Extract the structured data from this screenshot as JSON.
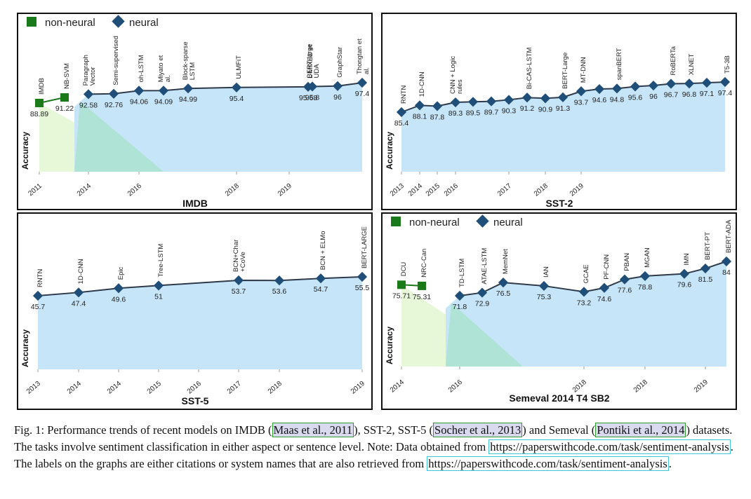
{
  "colors": {
    "neural": "#1f4e79",
    "nonneural": "#1a7a1a",
    "area_neural": "#c6e5f8",
    "area_nonneural": "#e6f8d8",
    "area_overlap": "#aee3d6",
    "line": "#2e3a4a"
  },
  "legend": {
    "nonneural_label": "non-neural",
    "neural_label": "neural"
  },
  "chart_data": [
    {
      "id": "imdb",
      "type": "line",
      "title": "IMDB",
      "ylabel": "Accuracy",
      "legend": "top-left",
      "years": [
        "2011",
        "2014",
        "2016",
        "2018",
        "2019"
      ],
      "nonneural": [
        {
          "name": "IMDB",
          "value": 88.89
        },
        {
          "name": "NB-SVM",
          "value": 91.22
        }
      ],
      "neural": [
        {
          "name": "Paragraph Vector",
          "value": 92.58
        },
        {
          "name": "Semi-supervised",
          "value": 92.76
        },
        {
          "name": "oh-LSTM",
          "value": 94.06
        },
        {
          "name": "Miyato et al.",
          "value": 94.09
        },
        {
          "name": "Block-sparse LSTM",
          "value": 94.99
        },
        {
          "name": "ULMFiT",
          "value": 95.4
        },
        {
          "name": "L MIXED et",
          "value": 95.68
        },
        {
          "name": "BERT-large UDA",
          "value": 95.8
        },
        {
          "name": "GraphStar",
          "value": 96
        },
        {
          "name": "Thongtan et al.",
          "value": 97.4
        }
      ]
    },
    {
      "id": "sst2",
      "type": "line",
      "title": "SST-2",
      "ylabel": "Accuracy",
      "years": [
        "2013",
        "2014",
        "2015",
        "2016",
        "2017",
        "2018",
        "2019"
      ],
      "nonneural": [],
      "neural": [
        {
          "name": "RNTN",
          "value": 85.4
        },
        {
          "name": "1D-CNN",
          "value": 88.1
        },
        {
          "name": "",
          "value": 87.8
        },
        {
          "name": "CNN + Logic rules",
          "value": 89.3
        },
        {
          "name": "",
          "value": 89.5
        },
        {
          "name": "",
          "value": 89.7
        },
        {
          "name": "",
          "value": 90.3
        },
        {
          "name": "Bi-CAS-LSTM",
          "value": 91.2
        },
        {
          "name": "",
          "value": 90.9
        },
        {
          "name": "BERT-Large",
          "value": 91.3
        },
        {
          "name": "MT-DNN",
          "value": 93.7
        },
        {
          "name": "",
          "value": 94.6
        },
        {
          "name": "spanBERT",
          "value": 94.8
        },
        {
          "name": "",
          "value": 95.6
        },
        {
          "name": "",
          "value": 96
        },
        {
          "name": "RoBERTa",
          "value": 96.7
        },
        {
          "name": "XLNET",
          "value": 96.8
        },
        {
          "name": "",
          "value": 97.1
        },
        {
          "name": "T5-3B",
          "value": 97.4
        }
      ]
    },
    {
      "id": "sst5",
      "type": "line",
      "title": "SST-5",
      "ylabel": "Accuracy",
      "years": [
        "2013",
        "2014",
        "2014",
        "2015",
        "2016",
        "2017",
        "2018",
        "2019"
      ],
      "nonneural": [],
      "neural": [
        {
          "name": "RNTN",
          "value": 45.7
        },
        {
          "name": "1D-CNN",
          "value": 47.4
        },
        {
          "name": "Epic",
          "value": 49.6
        },
        {
          "name": "Tree-LSTM",
          "value": 51
        },
        {
          "name": "BCN+Char +CoVe",
          "value": 53.7
        },
        {
          "name": "",
          "value": 53.6
        },
        {
          "name": "BCN + ELMo",
          "value": 54.7
        },
        {
          "name": "BERT-LARGE",
          "value": 55.5
        }
      ]
    },
    {
      "id": "semeval",
      "type": "line",
      "title": "Semeval 2014 T4 SB2",
      "ylabel": "Accuracy",
      "legend": "top-left",
      "years": [
        "2014",
        "2016",
        "2018",
        "2018",
        "2019"
      ],
      "nonneural": [
        {
          "name": "DCU",
          "value": 75.71
        },
        {
          "name": "NRC-Can",
          "value": 75.31
        }
      ],
      "neural": [
        {
          "name": "TD-LSTM",
          "value": 71.8
        },
        {
          "name": "ATAE-LSTM",
          "value": 72.9
        },
        {
          "name": "MemNet",
          "value": 76.5
        },
        {
          "name": "IAN",
          "value": 75.3
        },
        {
          "name": "GCAE",
          "value": 73.2
        },
        {
          "name": "PF-CNN",
          "value": 74.6
        },
        {
          "name": "PBAN",
          "value": 77.6
        },
        {
          "name": "MGAN",
          "value": 78.8
        },
        {
          "name": "IMN",
          "value": 79.6
        },
        {
          "name": "BERT-PT",
          "value": 81.5
        },
        {
          "name": "BERT-ADA",
          "value": 84
        }
      ]
    }
  ],
  "caption": {
    "p1": "Fig. 1: Performance trends of recent models on IMDB (",
    "c1": "Maas et al., 2011",
    "p2": "), SST-2, SST-5 (",
    "c2": "Socher et al., 2013",
    "p3": ") and Semeval (",
    "c3": "Pontiki et al., 2014",
    "p4": ") datasets. The tasks involve sentiment classification in either aspect or sentence level. Note: Data obtained from ",
    "u1": "https://paperswithcode.com/task/sentiment-analysis",
    "p5": ". The labels on the graphs are either citations or system names that are also retrieved from ",
    "u2": "https://paperswithcode.com/task/sentiment-analysis",
    "p6": "."
  }
}
